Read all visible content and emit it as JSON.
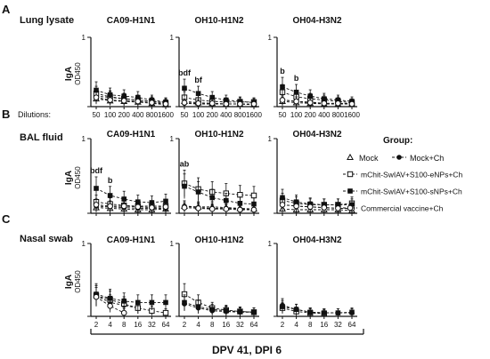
{
  "figure": {
    "panels": [
      {
        "letter": "A",
        "title": "Lung lysate"
      },
      {
        "letter": "B",
        "title": "BAL fluid"
      },
      {
        "letter": "C",
        "title": "Nasal swab"
      }
    ],
    "strains": [
      "CA09-H1N1",
      "OH10-H1N2",
      "OH04-H3N2"
    ],
    "ylabel_main": "IgA",
    "ylabel_sub": "OD450",
    "dilutions_label": "Dilutions:",
    "bottom_label": "DPV 41, DPI 6",
    "legend": {
      "title": "Group:",
      "entries": [
        {
          "label": "Mock",
          "marker": "open-triangle"
        },
        {
          "label": "Mock+Ch",
          "marker": "filled-circle"
        },
        {
          "label": "mChit-SwIAV+S100-eNPs+Ch",
          "marker": "open-square"
        },
        {
          "label": "mChit-SwIAV+S100-sNPs+Ch",
          "marker": "filled-square"
        },
        {
          "label": "Commercial vaccine+Ch",
          "marker": "open-circle"
        }
      ]
    },
    "colors": {
      "ink": "#111111",
      "paper": "#ffffff"
    }
  },
  "chart_data": [
    {
      "type": "line",
      "panel": "A",
      "title": "CA09-H1N1",
      "ylabel": "IgA OD450",
      "categories": [
        "50",
        "100",
        "200",
        "400",
        "800",
        "1600"
      ],
      "ylim": [
        0,
        1
      ],
      "annotations": [],
      "series": [
        {
          "name": "Mock",
          "values": [
            0.12,
            0.09,
            0.08,
            0.07,
            0.05,
            0.03
          ]
        },
        {
          "name": "Mock+Ch",
          "values": [
            0.16,
            0.14,
            0.12,
            0.1,
            0.08,
            0.06
          ]
        },
        {
          "name": "mChit-SwIAV+S100-eNPs+Ch",
          "values": [
            0.2,
            0.15,
            0.12,
            0.1,
            0.08,
            0.05
          ]
        },
        {
          "name": "mChit-SwIAV+S100-sNPs+Ch",
          "values": [
            0.25,
            0.18,
            0.16,
            0.14,
            0.1,
            0.07
          ]
        },
        {
          "name": "Commercial vaccine+Ch",
          "values": [
            0.14,
            0.1,
            0.09,
            0.08,
            0.06,
            0.04
          ]
        }
      ]
    },
    {
      "type": "line",
      "panel": "A",
      "title": "OH10-H1N2",
      "ylabel": "IgA OD450",
      "categories": [
        "50",
        "100",
        "200",
        "400",
        "800",
        "1600"
      ],
      "ylim": [
        0,
        1
      ],
      "annotations": [
        {
          "label": "bdf",
          "x": "50"
        },
        {
          "label": "bf",
          "x": "100"
        }
      ],
      "series": [
        {
          "name": "Mock",
          "values": [
            0.08,
            0.06,
            0.05,
            0.04,
            0.04,
            0.03
          ]
        },
        {
          "name": "Mock+Ch",
          "values": [
            0.05,
            0.04,
            0.04,
            0.04,
            0.04,
            0.03
          ]
        },
        {
          "name": "mChit-SwIAV+S100-eNPs+Ch",
          "values": [
            0.14,
            0.1,
            0.08,
            0.07,
            0.07,
            0.07
          ]
        },
        {
          "name": "mChit-SwIAV+S100-sNPs+Ch",
          "values": [
            0.28,
            0.2,
            0.14,
            0.1,
            0.08,
            0.06
          ]
        },
        {
          "name": "Commercial vaccine+Ch",
          "values": [
            0.06,
            0.05,
            0.05,
            0.04,
            0.04,
            0.04
          ]
        }
      ]
    },
    {
      "type": "line",
      "panel": "A",
      "title": "OH04-H3N2",
      "ylabel": "IgA OD450",
      "categories": [
        "50",
        "100",
        "200",
        "400",
        "800",
        "1600"
      ],
      "ylim": [
        0,
        1
      ],
      "annotations": [
        {
          "label": "b",
          "x": "50"
        },
        {
          "label": "b",
          "x": "100"
        }
      ],
      "series": [
        {
          "name": "Mock",
          "values": [
            0.08,
            0.06,
            0.05,
            0.04,
            0.04,
            0.04
          ]
        },
        {
          "name": "Mock+Ch",
          "values": [
            0.1,
            0.08,
            0.07,
            0.05,
            0.05,
            0.05
          ]
        },
        {
          "name": "mChit-SwIAV+S100-eNPs+Ch",
          "values": [
            0.22,
            0.15,
            0.12,
            0.1,
            0.08,
            0.06
          ]
        },
        {
          "name": "mChit-SwIAV+S100-sNPs+Ch",
          "values": [
            0.3,
            0.22,
            0.16,
            0.12,
            0.1,
            0.08
          ]
        },
        {
          "name": "Commercial vaccine+Ch",
          "values": [
            0.1,
            0.08,
            0.06,
            0.05,
            0.05,
            0.04
          ]
        }
      ]
    },
    {
      "type": "line",
      "panel": "B",
      "title": "CA09-H1N1",
      "ylabel": "IgA OD450",
      "categories": [
        "50",
        "100",
        "200",
        "400",
        "800",
        "1600"
      ],
      "ylim": [
        0,
        1
      ],
      "annotations": [
        {
          "label": "bdf",
          "x": "50"
        },
        {
          "label": "b",
          "x": "100"
        }
      ],
      "series": [
        {
          "name": "Mock",
          "values": [
            0.08,
            0.07,
            0.06,
            0.05,
            0.05,
            0.06
          ]
        },
        {
          "name": "Mock+Ch",
          "values": [
            0.1,
            0.09,
            0.08,
            0.07,
            0.07,
            0.07
          ]
        },
        {
          "name": "mChit-SwIAV+S100-eNPs+Ch",
          "values": [
            0.16,
            0.13,
            0.11,
            0.1,
            0.1,
            0.1
          ]
        },
        {
          "name": "mChit-SwIAV+S100-sNPs+Ch",
          "values": [
            0.35,
            0.25,
            0.2,
            0.16,
            0.15,
            0.17
          ]
        },
        {
          "name": "Commercial vaccine+Ch",
          "values": [
            0.12,
            0.1,
            0.1,
            0.09,
            0.08,
            0.09
          ]
        }
      ]
    },
    {
      "type": "line",
      "panel": "B",
      "title": "OH10-H1N2",
      "ylabel": "IgA OD450",
      "categories": [
        "50",
        "100",
        "200",
        "400",
        "800",
        "1600"
      ],
      "ylim": [
        0,
        1
      ],
      "annotations": [
        {
          "label": "ab",
          "x": "50"
        }
      ],
      "series": [
        {
          "name": "Mock",
          "values": [
            0.1,
            0.09,
            0.09,
            0.08,
            0.07,
            0.06
          ]
        },
        {
          "name": "Mock+Ch",
          "values": [
            0.1,
            0.08,
            0.07,
            0.07,
            0.06,
            0.06
          ]
        },
        {
          "name": "mChit-SwIAV+S100-eNPs+Ch",
          "values": [
            0.42,
            0.34,
            0.3,
            0.28,
            0.26,
            0.25
          ]
        },
        {
          "name": "mChit-SwIAV+S100-sNPs+Ch",
          "values": [
            0.38,
            0.3,
            0.22,
            0.18,
            0.14,
            0.13
          ]
        },
        {
          "name": "Commercial vaccine+Ch",
          "values": [
            0.08,
            0.07,
            0.06,
            0.06,
            0.05,
            0.05
          ]
        }
      ]
    },
    {
      "type": "line",
      "panel": "B",
      "title": "OH04-H3N2",
      "ylabel": "IgA OD450",
      "categories": [
        "50",
        "100",
        "200",
        "400",
        "800",
        "1600"
      ],
      "ylim": [
        0,
        1
      ],
      "annotations": [],
      "series": [
        {
          "name": "Mock",
          "values": [
            0.06,
            0.05,
            0.05,
            0.05,
            0.05,
            0.04
          ]
        },
        {
          "name": "Mock+Ch",
          "values": [
            0.12,
            0.1,
            0.09,
            0.08,
            0.07,
            0.07
          ]
        },
        {
          "name": "mChit-SwIAV+S100-eNPs+Ch",
          "values": [
            0.18,
            0.14,
            0.12,
            0.12,
            0.12,
            0.14
          ]
        },
        {
          "name": "mChit-SwIAV+S100-sNPs+Ch",
          "values": [
            0.22,
            0.16,
            0.13,
            0.12,
            0.12,
            0.12
          ]
        },
        {
          "name": "Commercial vaccine+Ch",
          "values": [
            0.12,
            0.1,
            0.09,
            0.08,
            0.07,
            0.07
          ]
        }
      ]
    },
    {
      "type": "line",
      "panel": "C",
      "title": "CA09-H1N1",
      "ylabel": "IgA OD450",
      "categories": [
        "2",
        "4",
        "8",
        "16",
        "32",
        "64"
      ],
      "ylim": [
        0,
        1
      ],
      "annotations": [],
      "series": [
        {
          "name": "Mock+Ch",
          "values": [
            0.3,
            0.2,
            0.16,
            0.12,
            null,
            null
          ]
        },
        {
          "name": "mChit-SwIAV+S100-eNPs+Ch",
          "values": [
            0.3,
            0.24,
            0.18,
            0.12,
            0.08,
            0.05
          ]
        },
        {
          "name": "mChit-SwIAV+S100-sNPs+Ch",
          "values": [
            0.32,
            0.26,
            0.22,
            0.2,
            0.2,
            0.2
          ]
        },
        {
          "name": "Commercial vaccine+Ch",
          "values": [
            0.28,
            0.15,
            0.05,
            null,
            null,
            null
          ]
        }
      ]
    },
    {
      "type": "line",
      "panel": "C",
      "title": "OH10-H1N2",
      "ylabel": "IgA OD450",
      "categories": [
        "2",
        "4",
        "8",
        "16",
        "32",
        "64"
      ],
      "ylim": [
        0,
        1
      ],
      "annotations": [],
      "series": [
        {
          "name": "Mock+Ch",
          "values": [
            0.18,
            0.12,
            0.08,
            0.07,
            0.06,
            0.06
          ]
        },
        {
          "name": "mChit-SwIAV+S100-eNPs+Ch",
          "values": [
            0.32,
            0.2,
            0.12,
            0.09,
            0.07,
            0.06
          ]
        },
        {
          "name": "mChit-SwIAV+S100-sNPs+Ch",
          "values": [
            0.2,
            0.14,
            0.1,
            0.08,
            0.07,
            0.06
          ]
        }
      ]
    },
    {
      "type": "line",
      "panel": "C",
      "title": "OH04-H3N2",
      "ylabel": "IgA OD450",
      "categories": [
        "2",
        "4",
        "8",
        "16",
        "32",
        "64"
      ],
      "ylim": [
        0,
        1
      ],
      "annotations": [],
      "series": [
        {
          "name": "Mock+Ch",
          "values": [
            0.16,
            0.1,
            0.06,
            0.05,
            0.05,
            0.05
          ]
        },
        {
          "name": "mChit-SwIAV+S100-eNPs+Ch",
          "values": [
            0.12,
            0.07,
            0.05,
            0.04,
            null,
            null
          ]
        },
        {
          "name": "mChit-SwIAV+S100-sNPs+Ch",
          "values": [
            0.14,
            0.1,
            0.06,
            0.05,
            0.05,
            0.06
          ]
        }
      ]
    }
  ]
}
